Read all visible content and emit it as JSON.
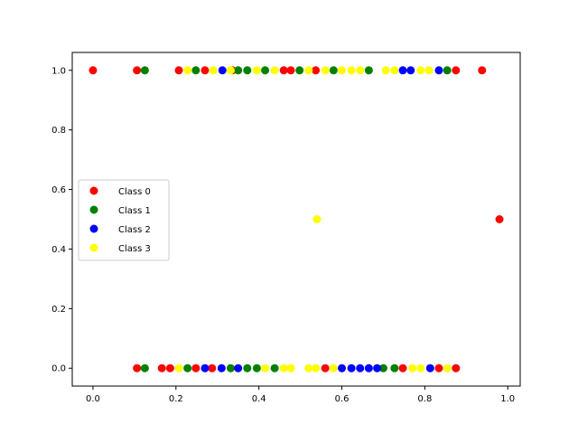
{
  "chart_data": {
    "type": "scatter",
    "title": "",
    "xlabel": "",
    "ylabel": "",
    "xlim": [
      -0.05,
      1.03
    ],
    "ylim": [
      -0.06,
      1.06
    ],
    "xticks": [
      "0.0",
      "0.2",
      "0.4",
      "0.6",
      "0.8",
      "1.0"
    ],
    "yticks": [
      "0.0",
      "0.2",
      "0.4",
      "0.6",
      "0.8",
      "1.0"
    ],
    "grid": false,
    "legend_position": "center-left",
    "series": [
      {
        "name": "Class 0",
        "color": "#ff0000",
        "points": [
          [
            0.0,
            1.0
          ],
          [
            0.106,
            1.0
          ],
          [
            0.207,
            1.0
          ],
          [
            0.27,
            1.0
          ],
          [
            0.336,
            1.0
          ],
          [
            0.46,
            1.0
          ],
          [
            0.477,
            1.0
          ],
          [
            0.537,
            1.0
          ],
          [
            0.875,
            1.0
          ],
          [
            0.938,
            1.0
          ],
          [
            0.98,
            0.5
          ],
          [
            0.106,
            0.0
          ],
          [
            0.166,
            0.0
          ],
          [
            0.186,
            0.0
          ],
          [
            0.248,
            0.0
          ],
          [
            0.287,
            0.0
          ],
          [
            0.56,
            0.0
          ],
          [
            0.747,
            0.0
          ],
          [
            0.834,
            0.0
          ],
          [
            0.875,
            0.0
          ]
        ]
      },
      {
        "name": "Class 1",
        "color": "#008000",
        "points": [
          [
            0.125,
            1.0
          ],
          [
            0.248,
            1.0
          ],
          [
            0.35,
            1.0
          ],
          [
            0.372,
            1.0
          ],
          [
            0.415,
            1.0
          ],
          [
            0.498,
            1.0
          ],
          [
            0.58,
            1.0
          ],
          [
            0.665,
            1.0
          ],
          [
            0.854,
            1.0
          ],
          [
            0.125,
            0.0
          ],
          [
            0.228,
            0.0
          ],
          [
            0.332,
            0.0
          ],
          [
            0.372,
            0.0
          ],
          [
            0.395,
            0.0
          ],
          [
            0.438,
            0.0
          ],
          [
            0.7,
            0.0
          ],
          [
            0.727,
            0.0
          ]
        ]
      },
      {
        "name": "Class 2",
        "color": "#0000ff",
        "points": [
          [
            0.312,
            1.0
          ],
          [
            0.747,
            1.0
          ],
          [
            0.766,
            1.0
          ],
          [
            0.834,
            1.0
          ],
          [
            0.27,
            0.0
          ],
          [
            0.31,
            0.0
          ],
          [
            0.35,
            0.0
          ],
          [
            0.6,
            0.0
          ],
          [
            0.623,
            0.0
          ],
          [
            0.644,
            0.0
          ],
          [
            0.665,
            0.0
          ],
          [
            0.685,
            0.0
          ],
          [
            0.813,
            0.0
          ]
        ]
      },
      {
        "name": "Class 3",
        "color": "#ffff00",
        "points": [
          [
            0.228,
            1.0
          ],
          [
            0.29,
            1.0
          ],
          [
            0.332,
            1.0
          ],
          [
            0.395,
            1.0
          ],
          [
            0.438,
            1.0
          ],
          [
            0.52,
            1.0
          ],
          [
            0.56,
            1.0
          ],
          [
            0.6,
            1.0
          ],
          [
            0.623,
            1.0
          ],
          [
            0.644,
            1.0
          ],
          [
            0.706,
            1.0
          ],
          [
            0.727,
            1.0
          ],
          [
            0.79,
            1.0
          ],
          [
            0.81,
            1.0
          ],
          [
            0.54,
            0.5
          ],
          [
            0.207,
            0.0
          ],
          [
            0.415,
            0.0
          ],
          [
            0.46,
            0.0
          ],
          [
            0.477,
            0.0
          ],
          [
            0.52,
            0.0
          ],
          [
            0.537,
            0.0
          ],
          [
            0.58,
            0.0
          ],
          [
            0.77,
            0.0
          ],
          [
            0.79,
            0.0
          ],
          [
            0.854,
            0.0
          ]
        ]
      }
    ]
  }
}
